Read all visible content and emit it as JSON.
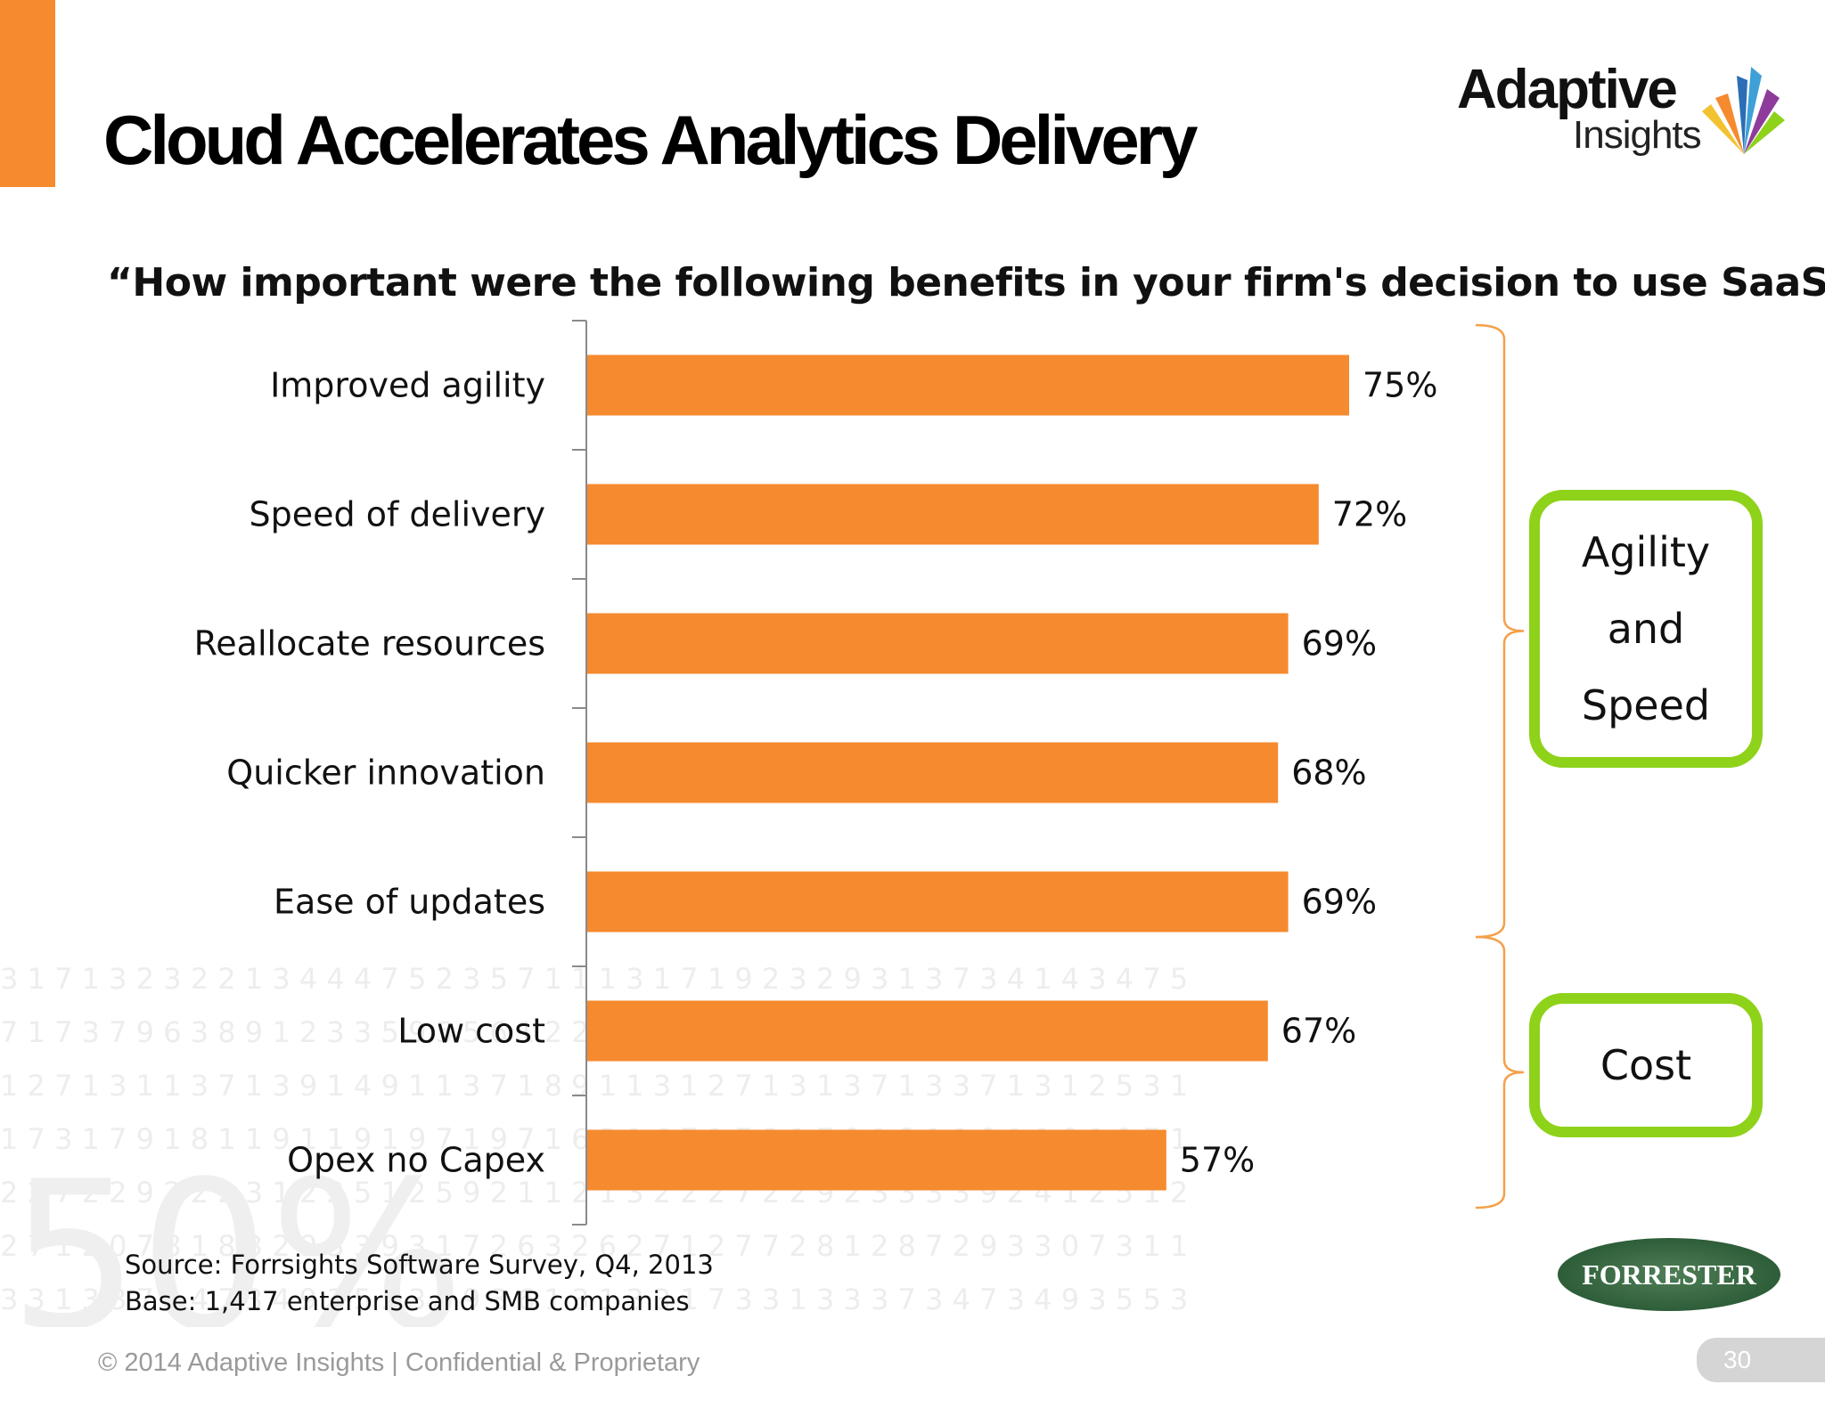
{
  "slide": {
    "title": "Cloud Accelerates Analytics Delivery",
    "subtitle": "“How important were the following benefits in your firm's decision to use SaaS?”",
    "footer": "© 2014 Adaptive Insights  |  Confidential & Proprietary",
    "page_number": "30"
  },
  "logo": {
    "line1": "Adaptive",
    "line2": "Insights"
  },
  "source": {
    "line1": "Source: Forrsights Software Survey, Q4, 2013",
    "line2": "Base: 1,417 enterprise and SMB companies"
  },
  "forrester_logo": "FORRESTER",
  "groups": {
    "agility": {
      "line1": "Agility",
      "line2": "and",
      "line3": "Speed"
    },
    "cost": {
      "label": "Cost"
    }
  },
  "colors": {
    "bar": "#F58A2E",
    "accent": "#F58A2E",
    "group_box": "#8ED21A",
    "forrester": "#2E5E39"
  },
  "chart_data": {
    "type": "bar",
    "orientation": "horizontal",
    "categories": [
      "Improved agility",
      "Speed of delivery",
      "Reallocate resources",
      "Quicker innovation",
      "Ease of updates",
      "Low cost",
      "Opex no Capex"
    ],
    "values": [
      75,
      72,
      69,
      68,
      69,
      67,
      57
    ],
    "value_labels": [
      "75%",
      "72%",
      "69%",
      "68%",
      "69%",
      "67%",
      "57%"
    ],
    "xlim": [
      0,
      100
    ],
    "grid": false,
    "legend": "none"
  }
}
